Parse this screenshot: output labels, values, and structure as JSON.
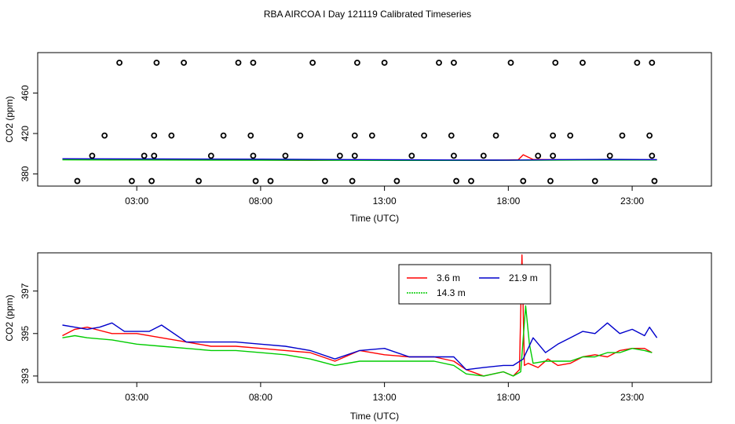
{
  "title": "RBA AIRCOA I  Day 121119  Calibrated Timeseries",
  "chart_data": [
    {
      "type": "scatter",
      "xlabel": "Time (UTC)",
      "ylabel": "CO2 (ppm)",
      "xlim": [
        -1.0,
        26.2
      ],
      "ylim": [
        368,
        500
      ],
      "xticks": [
        3,
        8,
        13,
        18,
        23
      ],
      "xtick_labels": [
        "03:00",
        "08:00",
        "13:00",
        "18:00",
        "23:00"
      ],
      "yticks": [
        380,
        420,
        460
      ],
      "ytick_labels": [
        "380",
        "420",
        "460"
      ],
      "colors": {
        "points": "#000000",
        "red": "#ff0000",
        "green": "#00cc00",
        "blue": "#0000cc"
      },
      "points": {
        "x": [
          0.6,
          1.2,
          1.7,
          2.3,
          2.8,
          3.3,
          3.6,
          3.7,
          3.7,
          3.8,
          4.4,
          4.9,
          5.5,
          6.0,
          6.5,
          7.1,
          7.6,
          7.7,
          7.7,
          7.8,
          8.4,
          9.0,
          9.6,
          10.1,
          10.6,
          11.2,
          11.7,
          11.8,
          11.8,
          11.9,
          12.5,
          13.0,
          13.5,
          14.1,
          14.6,
          15.2,
          15.7,
          15.8,
          15.8,
          15.9,
          16.5,
          17.0,
          17.5,
          18.1,
          18.6,
          19.2,
          19.7,
          19.8,
          19.8,
          19.9,
          20.5,
          21.0,
          21.5,
          22.1,
          22.6,
          23.2,
          23.7,
          23.8,
          23.8,
          23.9
        ],
        "y": [
          373,
          398,
          418,
          490,
          373,
          398,
          373,
          398,
          418,
          490,
          418,
          490,
          373,
          398,
          418,
          490,
          418,
          490,
          398,
          373,
          373,
          398,
          418,
          490,
          373,
          398,
          373,
          398,
          418,
          490,
          418,
          490,
          373,
          398,
          418,
          490,
          418,
          490,
          398,
          373,
          373,
          398,
          418,
          490,
          373,
          398,
          373,
          398,
          418,
          490,
          418,
          490,
          373,
          398,
          418,
          490,
          418,
          490,
          398,
          373
        ]
      },
      "series": [
        {
          "name": "3.6 m",
          "color": "#ff0000",
          "x": [
            0,
            2,
            4,
            6,
            8,
            10,
            12,
            14,
            16,
            17.5,
            18.4,
            18.6,
            19,
            21,
            24
          ],
          "y": [
            394.2,
            394,
            394.2,
            394,
            393.8,
            393.5,
            393.9,
            393.7,
            393.6,
            393.6,
            394,
            399,
            394.3,
            393.8,
            393.9
          ]
        },
        {
          "name": "14.3 m",
          "color": "#00cc00",
          "x": [
            0,
            4,
            8,
            12,
            16,
            19,
            21,
            24
          ],
          "y": [
            393.9,
            393.8,
            393.6,
            393.5,
            393.4,
            393.6,
            393.8,
            393.8
          ]
        },
        {
          "name": "21.9 m",
          "color": "#0000cc",
          "x": [
            0,
            4,
            8,
            12,
            16,
            18,
            20,
            22,
            24
          ],
          "y": [
            395,
            394.9,
            394.6,
            394.2,
            393.8,
            393.7,
            394.2,
            394.4,
            394.2
          ]
        }
      ]
    },
    {
      "type": "line",
      "xlabel": "Time (UTC)",
      "ylabel": "CO2 (ppm)",
      "xlim": [
        -1.0,
        26.2
      ],
      "ylim": [
        392.7,
        398.8
      ],
      "xticks": [
        3,
        8,
        13,
        18,
        23
      ],
      "xtick_labels": [
        "03:00",
        "08:00",
        "13:00",
        "18:00",
        "23:00"
      ],
      "yticks": [
        393,
        395,
        397
      ],
      "ytick_labels": [
        "393",
        "395",
        "397"
      ],
      "legend": {
        "placement": "top-center",
        "entries": [
          "3.6 m",
          "21.9 m",
          "14.3 m"
        ]
      },
      "series": [
        {
          "name": "3.6 m",
          "color": "#ff0000",
          "x": [
            0,
            0.5,
            1,
            2,
            3,
            4,
            5,
            6,
            7,
            8,
            9,
            10,
            11,
            12,
            13,
            14,
            15,
            15.8,
            16.3,
            17,
            17.8,
            18.2,
            18.45,
            18.55,
            18.65,
            18.8,
            19.2,
            19.6,
            20,
            20.5,
            21,
            21.5,
            22,
            22.5,
            23,
            23.5,
            23.8
          ],
          "y": [
            394.9,
            395.2,
            395.3,
            395.0,
            395.0,
            394.8,
            394.6,
            394.4,
            394.4,
            394.3,
            394.2,
            394.1,
            393.7,
            394.2,
            394.0,
            393.9,
            393.9,
            393.7,
            393.3,
            393.0,
            393.2,
            393.0,
            393.3,
            398.7,
            393.5,
            393.6,
            393.4,
            393.8,
            393.5,
            393.6,
            393.9,
            394.0,
            393.9,
            394.2,
            394.3,
            394.3,
            394.1
          ]
        },
        {
          "name": "14.3 m",
          "color": "#00cc00",
          "x": [
            0,
            0.5,
            1,
            2,
            3,
            4,
            5,
            6,
            7,
            8,
            9,
            10,
            11,
            12,
            13,
            14,
            15,
            15.8,
            16.3,
            17,
            17.8,
            18.2,
            18.5,
            18.7,
            18.85,
            19,
            19.5,
            20,
            20.5,
            21,
            21.5,
            22,
            22.5,
            23,
            23.5,
            23.8
          ],
          "y": [
            394.8,
            394.9,
            394.8,
            394.7,
            394.5,
            394.4,
            394.3,
            394.2,
            394.2,
            394.1,
            394.0,
            393.8,
            393.5,
            393.7,
            393.7,
            393.7,
            393.7,
            393.5,
            393.1,
            393.0,
            393.2,
            393.0,
            393.2,
            396.3,
            394.5,
            393.6,
            393.7,
            393.7,
            393.7,
            393.9,
            393.9,
            394.1,
            394.1,
            394.3,
            394.2,
            394.1
          ]
        },
        {
          "name": "21.9 m",
          "color": "#0000cc",
          "x": [
            0,
            0.5,
            1,
            1.5,
            2,
            2.5,
            3,
            3.5,
            4,
            5,
            6,
            7,
            8,
            9,
            10,
            11,
            12,
            13,
            14,
            15,
            15.8,
            16.3,
            17,
            17.8,
            18.2,
            18.6,
            19,
            19.5,
            20,
            20.5,
            21,
            21.5,
            22,
            22.5,
            23,
            23.5,
            23.7,
            24.0
          ],
          "y": [
            395.4,
            395.3,
            395.2,
            395.3,
            395.5,
            395.1,
            395.1,
            395.1,
            395.4,
            394.6,
            394.6,
            394.6,
            394.5,
            394.4,
            394.2,
            393.8,
            394.2,
            394.3,
            393.9,
            393.9,
            393.9,
            393.3,
            393.4,
            393.5,
            393.5,
            393.8,
            394.8,
            394.1,
            394.5,
            394.8,
            395.1,
            395.0,
            395.5,
            395.0,
            395.2,
            394.9,
            395.3,
            394.8
          ]
        }
      ]
    }
  ]
}
